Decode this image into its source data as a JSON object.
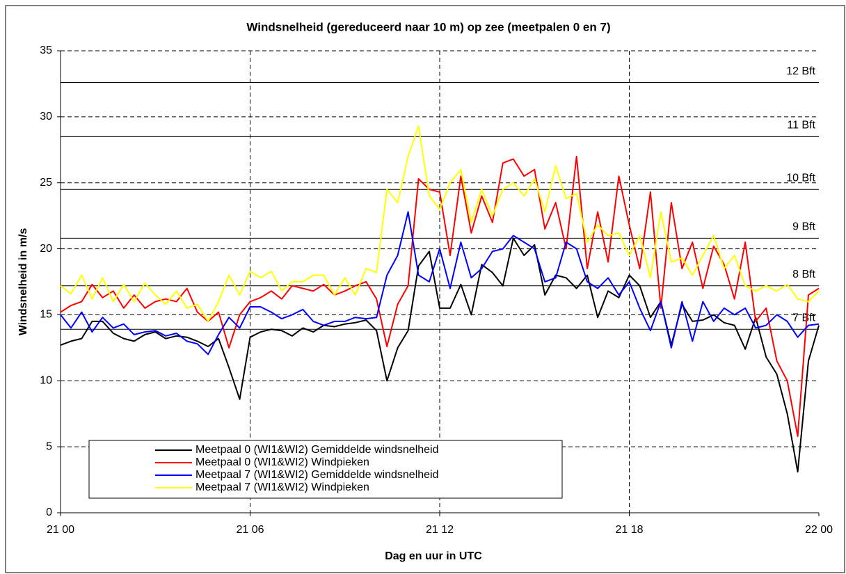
{
  "chart_data": {
    "type": "line",
    "title": "Windsnelheid (gereduceerd naar 10 m) op zee (meetpalen 0 en 7)",
    "xlabel": "Dag en uur in UTC",
    "ylabel": "Windsnelheid in m/s",
    "x": [
      0,
      0.33,
      0.67,
      1,
      1.33,
      1.67,
      2,
      2.33,
      2.67,
      3,
      3.33,
      3.67,
      4,
      4.33,
      4.67,
      5,
      5.33,
      5.67,
      6,
      6.33,
      6.67,
      7,
      7.33,
      7.67,
      8,
      8.33,
      8.67,
      9,
      9.33,
      9.67,
      10,
      10.33,
      10.67,
      11,
      11.33,
      11.67,
      12,
      12.33,
      12.67,
      13,
      13.33,
      13.67,
      14,
      14.33,
      14.67,
      15,
      15.33,
      15.67,
      16,
      16.33,
      16.67,
      17,
      17.33,
      17.67,
      18,
      18.33,
      18.67,
      19,
      19.33,
      19.67,
      20,
      20.33,
      20.67,
      21,
      21.33,
      21.67,
      22,
      22.33,
      22.67,
      23,
      23.33,
      23.67,
      24
    ],
    "series": [
      {
        "name": "Meetpaal 0 (WI1&WI2) Gemiddelde windsnelheid",
        "color": "#000000",
        "values": [
          12.7,
          13.0,
          13.2,
          14.5,
          14.5,
          13.6,
          13.2,
          13.0,
          13.5,
          13.7,
          13.2,
          13.4,
          13.3,
          13.0,
          12.6,
          13.2,
          11.0,
          8.6,
          13.3,
          13.7,
          13.9,
          13.8,
          13.4,
          14.0,
          13.7,
          14.2,
          14.1,
          14.3,
          14.4,
          14.6,
          13.8,
          10.0,
          12.5,
          13.8,
          18.7,
          19.8,
          15.5,
          15.5,
          17.3,
          15.0,
          18.8,
          18.2,
          17.2,
          20.8,
          19.5,
          20.3,
          16.5,
          18.0,
          17.8,
          17.0,
          18.0,
          14.8,
          16.8,
          16.3,
          18.0,
          17.2,
          14.8,
          16.0,
          12.7,
          15.8,
          14.5,
          14.6,
          15.0,
          14.4,
          14.2,
          12.4,
          14.8,
          11.8,
          10.5,
          7.5,
          3.1,
          11.5,
          14.2
        ]
      },
      {
        "name": "Meetpaal 0 (WI1&WI2) Windpieken",
        "color": "#ff0000",
        "values": [
          15.2,
          15.7,
          16.0,
          17.3,
          16.3,
          16.8,
          15.5,
          16.5,
          15.5,
          16.0,
          16.2,
          16.0,
          17.0,
          15.2,
          14.5,
          15.2,
          12.5,
          15.0,
          16.0,
          16.3,
          16.8,
          16.2,
          17.2,
          17.0,
          16.8,
          17.3,
          16.5,
          16.8,
          17.2,
          17.5,
          16.2,
          12.6,
          15.8,
          17.2,
          25.3,
          24.5,
          24.3,
          19.5,
          25.5,
          21.2,
          24.0,
          22.0,
          26.5,
          26.8,
          25.5,
          26.0,
          21.5,
          23.5,
          20.0,
          27.0,
          18.5,
          22.8,
          19.0,
          25.5,
          21.8,
          18.5,
          24.3,
          15.5,
          23.5,
          18.5,
          20.5,
          17.0,
          20.2,
          18.8,
          16.2,
          20.5,
          14.5,
          15.5,
          11.5,
          10.0,
          5.8,
          16.5,
          17.0
        ]
      },
      {
        "name": "Meetpaal 7 (WI1&WI2) Gemiddelde windsnelheid",
        "color": "#0000ff",
        "values": [
          15.0,
          14.0,
          15.2,
          13.7,
          14.8,
          14.0,
          14.3,
          13.5,
          13.7,
          13.8,
          13.4,
          13.6,
          13.0,
          12.8,
          12.0,
          13.5,
          14.8,
          14.0,
          15.6,
          15.6,
          15.2,
          14.7,
          15.0,
          15.4,
          14.5,
          14.2,
          14.5,
          14.5,
          14.8,
          14.7,
          14.8,
          18.0,
          19.5,
          22.8,
          18.0,
          17.5,
          20.0,
          17.0,
          20.5,
          17.8,
          18.5,
          19.8,
          20.0,
          21.0,
          20.5,
          20.0,
          17.5,
          17.8,
          20.5,
          20.0,
          17.5,
          17.0,
          17.8,
          16.5,
          17.5,
          15.5,
          13.8,
          16.0,
          12.5,
          16.0,
          13.0,
          16.0,
          14.5,
          15.5,
          15.0,
          15.5,
          14.0,
          14.2,
          15.0,
          14.5,
          13.3,
          14.2,
          14.3
        ]
      },
      {
        "name": "Meetpaal 7 (WI1&WI2) Windpieken",
        "color": "#ffff00",
        "values": [
          17.2,
          16.6,
          18.0,
          16.2,
          17.8,
          16.0,
          17.3,
          16.0,
          17.4,
          16.5,
          15.8,
          16.8,
          15.5,
          15.8,
          14.5,
          16.0,
          18.0,
          16.5,
          18.3,
          17.8,
          18.3,
          16.8,
          17.5,
          17.5,
          18.0,
          18.0,
          16.5,
          17.8,
          16.5,
          18.5,
          18.2,
          24.5,
          23.5,
          27.0,
          29.3,
          24.0,
          23.0,
          25.0,
          26.0,
          22.0,
          24.5,
          22.5,
          24.5,
          25.0,
          24.0,
          25.3,
          22.8,
          26.3,
          23.8,
          24.2,
          20.5,
          21.8,
          21.0,
          21.2,
          19.5,
          21.0,
          17.8,
          22.8,
          19.0,
          19.3,
          18.0,
          19.5,
          21.0,
          18.5,
          19.5,
          17.2,
          16.8,
          17.2,
          16.8,
          17.3,
          16.2,
          16.0,
          16.8
        ]
      }
    ],
    "xlim": [
      0,
      24
    ],
    "xticks": [
      {
        "value": 0,
        "label": "21 00"
      },
      {
        "value": 6,
        "label": "21 06"
      },
      {
        "value": 12,
        "label": "21 12"
      },
      {
        "value": 18,
        "label": "21 18"
      },
      {
        "value": 24,
        "label": "22 00"
      }
    ],
    "ylim": [
      0,
      35
    ],
    "yticks": [
      0,
      5,
      10,
      15,
      20,
      25,
      30,
      35
    ],
    "grid": true,
    "legend": "lower left",
    "reference_lines": [
      {
        "value": 32.6,
        "label": "12 Bft"
      },
      {
        "value": 28.5,
        "label": "11 Bft"
      },
      {
        "value": 24.5,
        "label": "10 Bft"
      },
      {
        "value": 20.8,
        "label": "9 Bft"
      },
      {
        "value": 17.2,
        "label": "8 Bft"
      },
      {
        "value": 13.9,
        "label": "7 Bft"
      }
    ]
  }
}
